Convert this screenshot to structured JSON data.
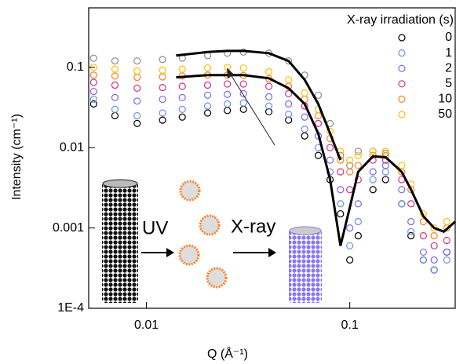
{
  "chart_data": {
    "type": "scatter",
    "xlabel": "Q (Å⁻¹)",
    "ylabel": "Intensity (cm⁻¹)",
    "legend_title": "X-ray irradiation (s)",
    "legend": "upper right",
    "xscale": "log",
    "yscale": "log",
    "xlim": [
      0.0052,
      0.33
    ],
    "ylim": [
      0.0001,
      0.55
    ],
    "xticks": [
      0.01,
      0.1
    ],
    "yticks": [
      {
        "value": 0.0001,
        "label": "1E-4"
      },
      0.001,
      0.01,
      0.1
    ],
    "annotations": [
      "UV",
      "X-ray"
    ],
    "x": [
      0.0055,
      0.007,
      0.009,
      0.012,
      0.015,
      0.02,
      0.025,
      0.03,
      0.04,
      0.05,
      0.06,
      0.07,
      0.08,
      0.09,
      0.1,
      0.11,
      0.13,
      0.15,
      0.18,
      0.2,
      0.23,
      0.26,
      0.3
    ],
    "series": [
      {
        "color": "#8c8c8c",
        "values": [
          0.13,
          0.12,
          0.12,
          0.125,
          0.13,
          0.14,
          0.15,
          0.155,
          0.15,
          0.12,
          0.08,
          0.045,
          0.02,
          0.008,
          0.006,
          0.009,
          0.009,
          0.0085,
          null,
          null,
          null,
          null,
          null
        ]
      },
      {
        "name": "0",
        "color": "#000000",
        "values": [
          0.035,
          0.025,
          0.02,
          0.022,
          0.024,
          0.027,
          0.029,
          0.03,
          0.028,
          0.022,
          0.014,
          0.008,
          0.004,
          0.0015,
          0.0004,
          0.0008,
          0.003,
          0.004,
          0.002,
          0.0008,
          0.0004,
          0.0003,
          0.0005
        ]
      },
      {
        "name": "1",
        "color": "#6f8fe8",
        "values": [
          0.04,
          0.03,
          0.025,
          0.027,
          0.03,
          0.033,
          0.035,
          0.036,
          0.033,
          0.026,
          0.017,
          0.01,
          0.005,
          0.002,
          0.0006,
          0.0012,
          0.004,
          0.005,
          0.002,
          0.0009,
          0.0004,
          0.0003,
          0.0004
        ]
      },
      {
        "name": "2",
        "color": "#7b68ee",
        "values": [
          0.05,
          0.042,
          0.038,
          0.04,
          0.042,
          0.045,
          0.046,
          0.047,
          0.043,
          0.035,
          0.024,
          0.014,
          0.007,
          0.003,
          0.001,
          0.002,
          0.005,
          0.006,
          0.003,
          0.0012,
          0.0005,
          0.0004,
          0.0005
        ]
      },
      {
        "name": "5",
        "color": "#d63384",
        "values": [
          0.065,
          0.06,
          0.055,
          0.056,
          0.058,
          0.06,
          0.062,
          0.062,
          0.058,
          0.047,
          0.033,
          0.02,
          0.01,
          0.005,
          0.003,
          0.004,
          0.007,
          0.007,
          0.004,
          0.002,
          0.0008,
          0.0006,
          0.0007
        ]
      },
      {
        "name": "10",
        "color": "#ff7f27",
        "values": [
          0.08,
          0.078,
          0.075,
          0.076,
          0.078,
          0.08,
          0.08,
          0.079,
          0.072,
          0.058,
          0.04,
          0.025,
          0.013,
          0.007,
          0.005,
          0.006,
          0.008,
          0.008,
          0.005,
          0.003,
          0.0012,
          0.0008,
          0.001
        ]
      },
      {
        "name": "50",
        "color": "#ffc000",
        "values": [
          0.1,
          0.095,
          0.09,
          0.092,
          0.095,
          0.098,
          0.1,
          0.098,
          0.088,
          0.07,
          0.048,
          0.03,
          0.016,
          0.009,
          0.007,
          0.008,
          0.009,
          0.009,
          0.006,
          0.0035,
          0.0015,
          0.001,
          0.0012
        ]
      }
    ],
    "fits": [
      {
        "color": "#000000",
        "x": [
          0.014,
          0.02,
          0.025,
          0.03,
          0.04,
          0.05,
          0.06,
          0.07,
          0.08,
          0.09
        ],
        "values": [
          0.14,
          0.155,
          0.16,
          0.16,
          0.15,
          0.12,
          0.07,
          0.035,
          0.015,
          0.007
        ]
      },
      {
        "color": "#000000",
        "x": [
          0.014,
          0.02,
          0.03,
          0.04,
          0.05,
          0.06,
          0.07,
          0.08,
          0.09,
          0.1,
          0.11,
          0.13,
          0.15,
          0.18,
          0.2,
          0.23,
          0.26,
          0.29,
          0.33
        ],
        "values": [
          0.075,
          0.08,
          0.08,
          0.073,
          0.055,
          0.035,
          0.015,
          0.004,
          0.0006,
          0.0018,
          0.005,
          0.0078,
          0.0076,
          0.005,
          0.003,
          0.0014,
          0.001,
          0.0009,
          0.0012
        ]
      }
    ]
  }
}
